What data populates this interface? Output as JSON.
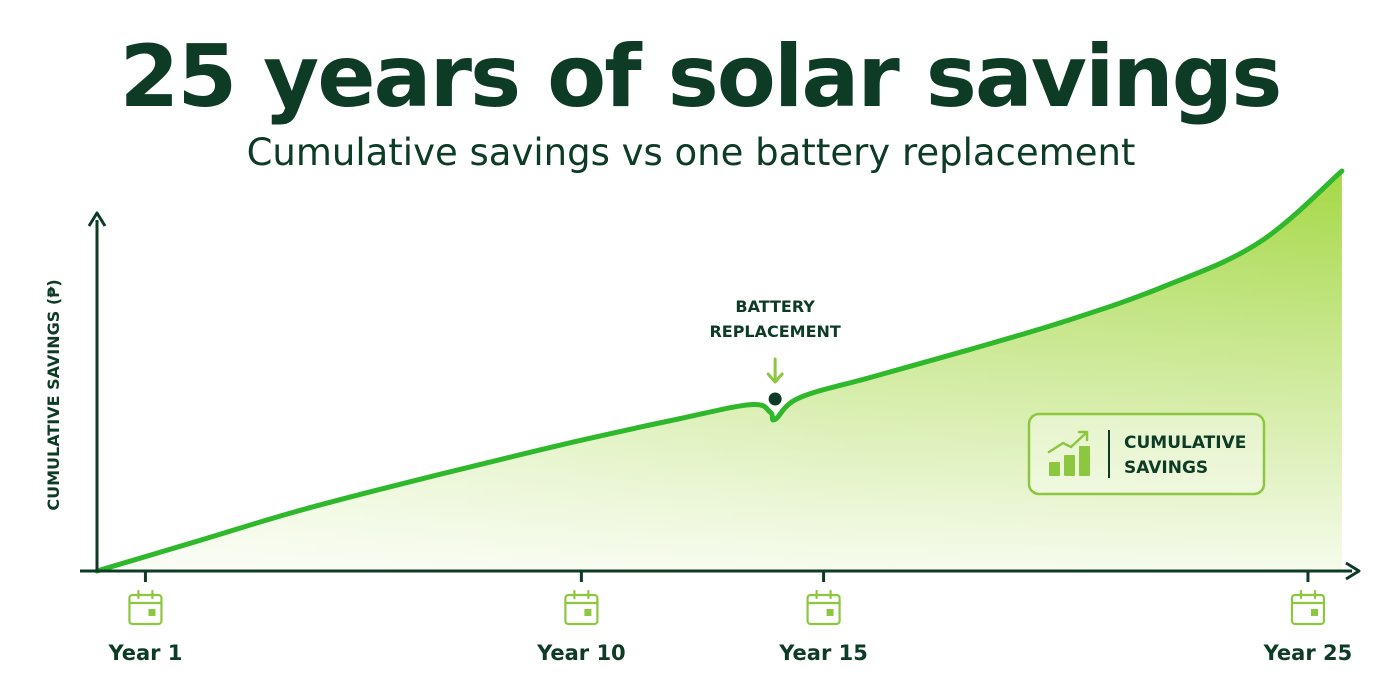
{
  "header": {
    "title": "25 years of solar savings",
    "subtitle": "Cumulative savings vs one battery replacement"
  },
  "chart_data": {
    "type": "area",
    "title": "25 years of solar savings",
    "subtitle": "Cumulative savings vs one battery replacement",
    "xlabel": "",
    "ylabel": "CUMULATIVE SAVINGS (₱)",
    "xlim": [
      0,
      26.9
    ],
    "ylim": [
      0,
      100
    ],
    "x_ticks": [
      {
        "value": 1,
        "label": "Year 1"
      },
      {
        "value": 10,
        "label": "Year 10"
      },
      {
        "value": 15,
        "label": "Year 15"
      },
      {
        "value": 25,
        "label": "Year 25"
      }
    ],
    "grid": false,
    "legend_position": "right",
    "series": [
      {
        "name": "CUMULATIVE SAVINGS",
        "color": "#2fb82c",
        "x": [
          0,
          2,
          4,
          6,
          8,
          10,
          12,
          13.5,
          13.9,
          14,
          14.5,
          16,
          18,
          20,
          22,
          24,
          25.7
        ],
        "y": [
          0,
          7.2,
          14.5,
          20.9,
          26.9,
          32.7,
          38.0,
          41.6,
          39.7,
          37.9,
          43.3,
          48.5,
          55.3,
          62.5,
          71.0,
          82.2,
          100
        ]
      }
    ],
    "annotations": [
      {
        "x": 14,
        "lines": [
          "BATTERY",
          "REPLACEMENT"
        ]
      }
    ],
    "legend": {
      "label_lines": [
        "CUMULATIVE",
        "SAVINGS"
      ],
      "icon": "bar-chart-growth-icon"
    },
    "tick_icon": "calendar-icon",
    "colors": {
      "dark": "#0d3b26",
      "line": "#2fb82c",
      "accent": "#8dc63f",
      "fill_top": "#a5d846",
      "fill_bottom": "#f6fbec"
    }
  }
}
